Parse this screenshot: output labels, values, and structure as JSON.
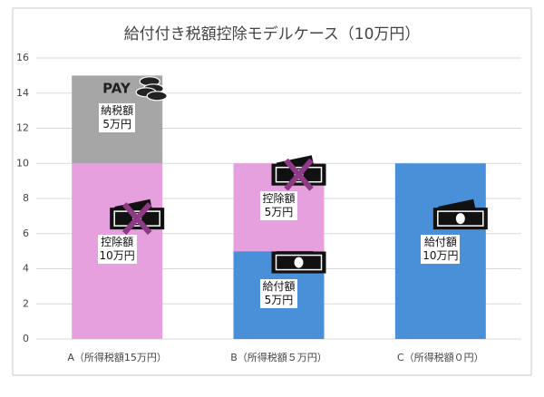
{
  "chart_data": {
    "type": "stacked_bar",
    "title": "給付付き税額控除モデルケース（10万円）",
    "categories": [
      "A（所得税額15万円）",
      "B（所得税額５万円）",
      "C（所得税額０円）"
    ],
    "series": [
      {
        "color": "#4a90d9",
        "values": [
          0,
          5,
          10
        ],
        "value_labels": [
          null,
          "給付額\n5万円",
          "給付額\n10万円"
        ]
      },
      {
        "color": "#e6a0dd",
        "values": [
          10,
          5,
          0
        ],
        "value_labels": [
          "控除額\n10万円",
          "控除額\n5万円",
          null
        ]
      },
      {
        "color": "#a6a6a6",
        "values": [
          5,
          0,
          0
        ],
        "value_labels": [
          "納税額\n5万円",
          null,
          null
        ]
      }
    ],
    "ylim": [
      0,
      16
    ],
    "yticks": [
      0,
      2,
      4,
      6,
      8,
      10,
      12,
      14,
      16
    ],
    "grid": true
  }
}
